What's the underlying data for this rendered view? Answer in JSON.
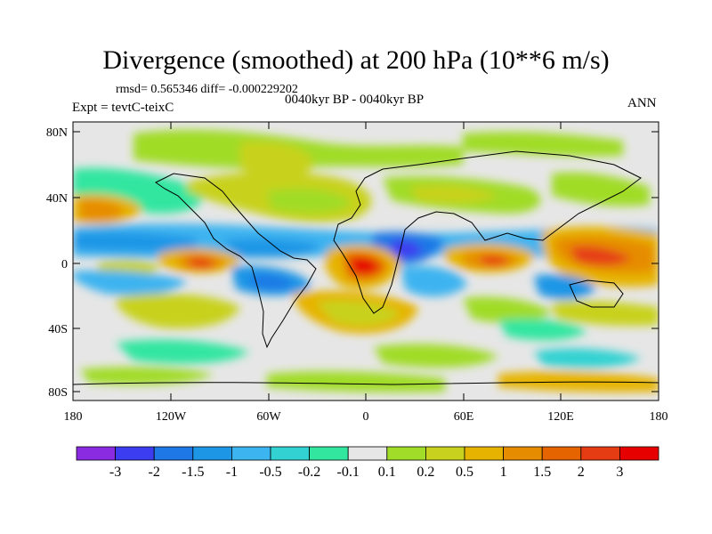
{
  "title": "Divergence (smoothed) at 200 hPa (10**6 m/s)",
  "stats": "rmsd= 0.565346 diff= -0.000229202",
  "period": "0040kyr BP - 0040kyr BP",
  "experiment": "Expt = tevtC-teixC",
  "season": "ANN",
  "map": {
    "lat_ticks": [
      "80N",
      "40N",
      "0",
      "40S",
      "80S"
    ],
    "lon_ticks": [
      "180",
      "120W",
      "60W",
      "0",
      "60E",
      "120E",
      "180"
    ]
  },
  "colorbar": {
    "labels": [
      "-3",
      "-2",
      "-1.5",
      "-1",
      "-0.5",
      "-0.2",
      "-0.1",
      "0.1",
      "0.2",
      "0.5",
      "1",
      "1.5",
      "2",
      "3"
    ],
    "colors": [
      "#8a2be2",
      "#3c3cf0",
      "#1e78e6",
      "#1e96e6",
      "#3cb4f0",
      "#32d2d2",
      "#32e6a0",
      "#e6e6e6",
      "#a0dc28",
      "#c8d21e",
      "#e6b400",
      "#e68c00",
      "#e66400",
      "#e63c14",
      "#e60000"
    ]
  },
  "palette": {
    "neutral": "#e6e6e6",
    "coast": "#000000"
  }
}
